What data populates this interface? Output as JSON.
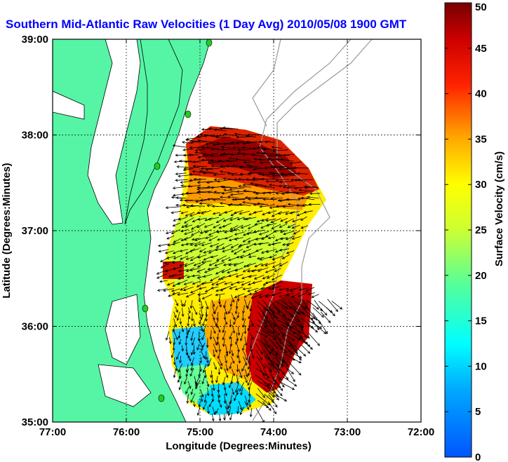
{
  "chart_data": {
    "type": "heatmap",
    "title": "Southern Mid-Atlantic Raw Velocities (1 Day Avg) 2010/05/08 1900 GMT",
    "title_color": "#0000ff",
    "xlabel": "Longitude (Degrees:Minutes)",
    "ylabel": "Latitude (Degrees:Minutes)",
    "x_ticks": [
      "77:00",
      "76:00",
      "75:00",
      "74:00",
      "73:00",
      "72:00"
    ],
    "y_ticks": [
      "39:00",
      "38:00",
      "37:00",
      "36:00",
      "35:00"
    ],
    "xlim": [
      -77,
      -72
    ],
    "ylim": [
      35,
      39
    ],
    "grid": true,
    "colorbar": {
      "label": "Surface Velocity (cm/s)",
      "min": 0,
      "max": 50,
      "ticks": [
        "0",
        "5",
        "10",
        "15",
        "20",
        "25",
        "30",
        "35",
        "40",
        "45",
        "50"
      ]
    },
    "colors": {
      "land": "#55f5a5",
      "water": "#ffffff",
      "station": "#22cc22",
      "isobath": "#999999"
    },
    "velocity_field": [
      {
        "lon": -75.1,
        "lat": 37.9,
        "speed": 45
      },
      {
        "lon": -74.6,
        "lat": 37.8,
        "speed": 48
      },
      {
        "lon": -74.2,
        "lat": 37.6,
        "speed": 42
      },
      {
        "lon": -74.8,
        "lat": 37.3,
        "speed": 30
      },
      {
        "lon": -74.3,
        "lat": 37.2,
        "speed": 28
      },
      {
        "lon": -74.9,
        "lat": 36.8,
        "speed": 22
      },
      {
        "lon": -74.4,
        "lat": 36.6,
        "speed": 27
      },
      {
        "lon": -75.1,
        "lat": 36.3,
        "speed": 20
      },
      {
        "lon": -74.6,
        "lat": 36.1,
        "speed": 24
      },
      {
        "lon": -73.8,
        "lat": 36.0,
        "speed": 48
      },
      {
        "lon": -74.1,
        "lat": 35.6,
        "speed": 46
      },
      {
        "lon": -75.3,
        "lat": 35.8,
        "speed": 12
      },
      {
        "lon": -74.7,
        "lat": 35.3,
        "speed": 13
      },
      {
        "lon": -74.5,
        "lat": 35.1,
        "speed": 10
      }
    ]
  }
}
